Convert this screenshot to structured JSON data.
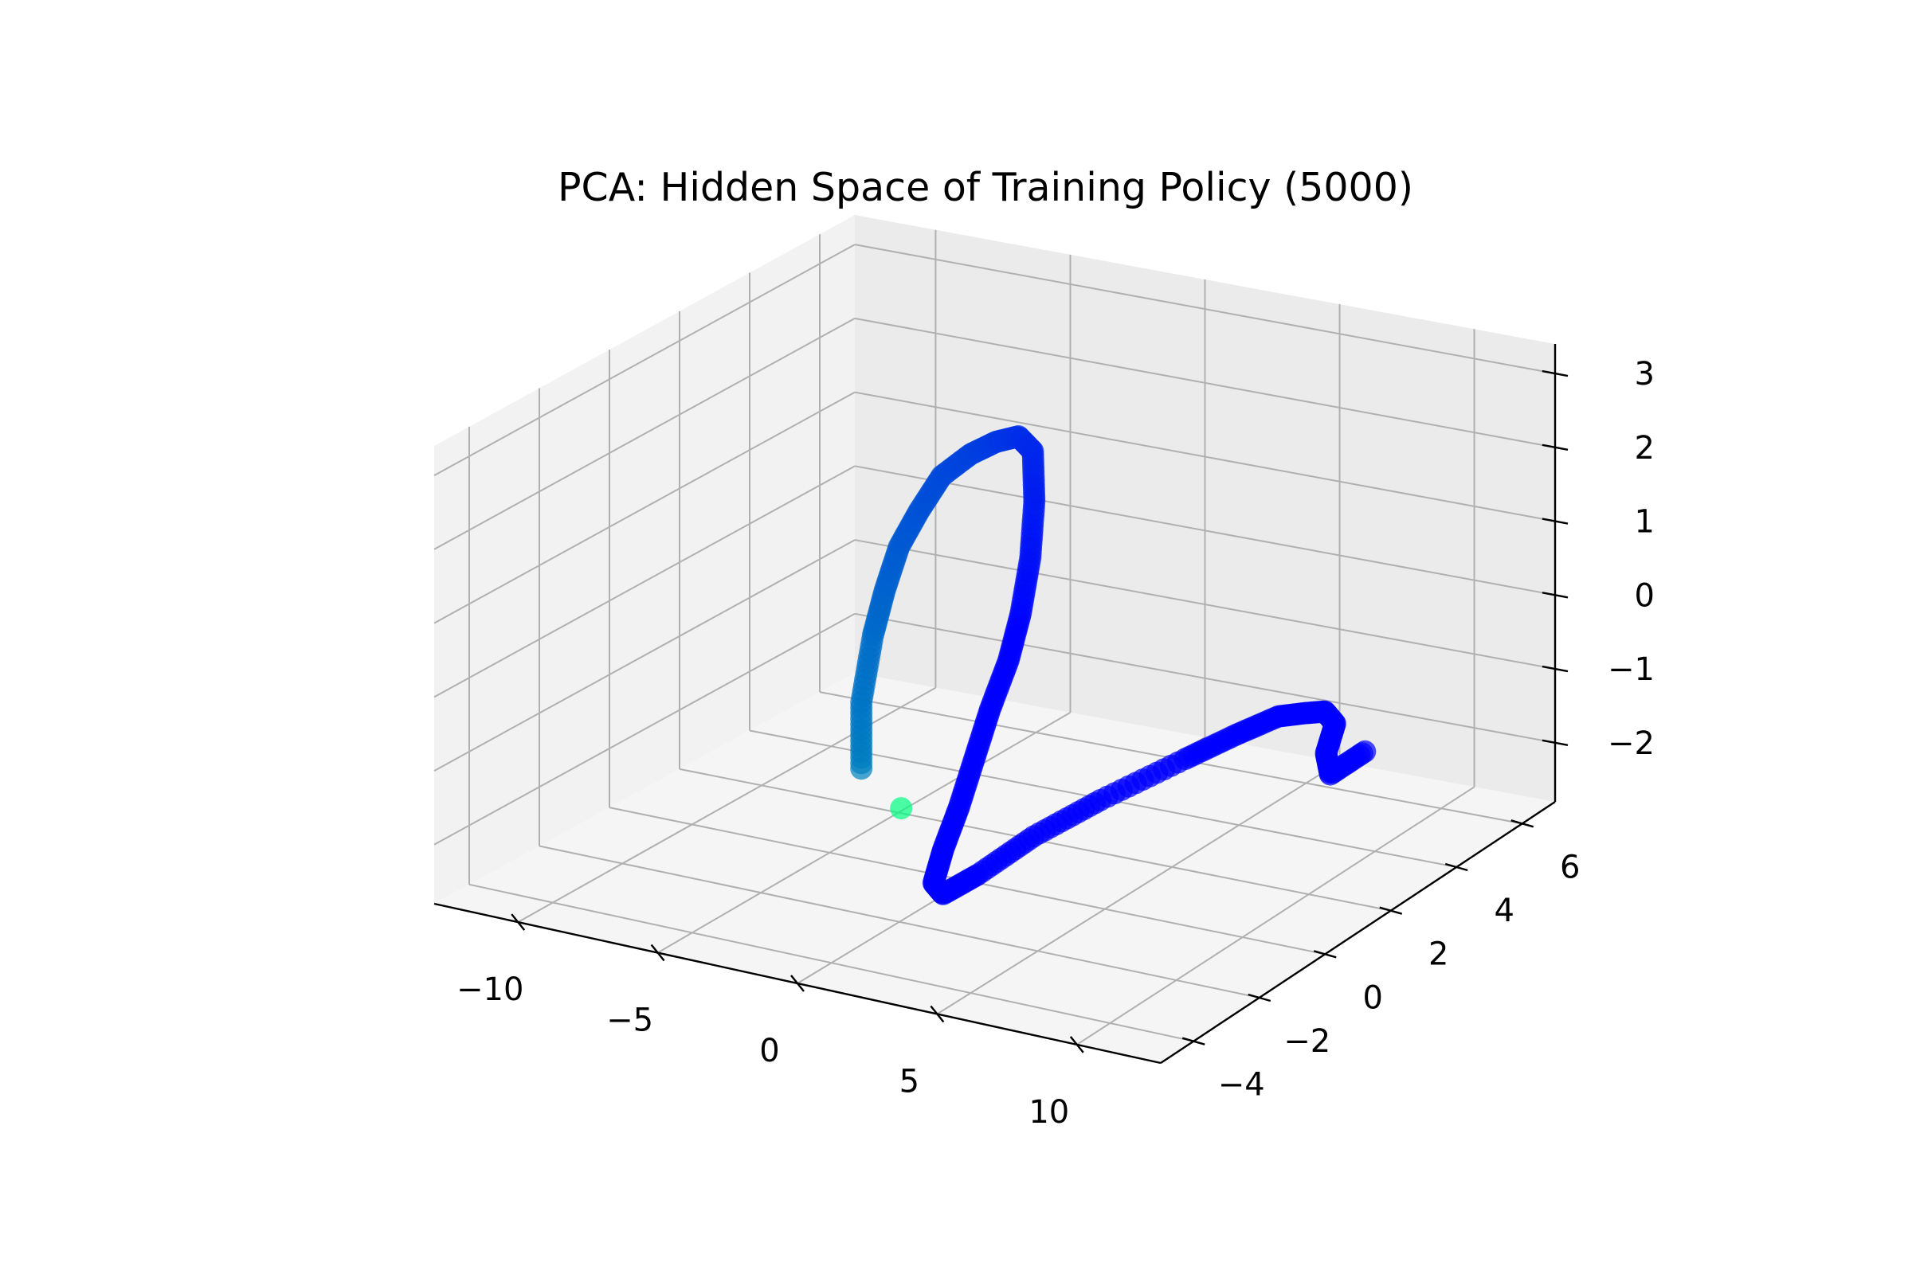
{
  "chart_data": {
    "type": "scatter",
    "projection": "3d",
    "title": "PCA: Hidden Space of Training Policy (5000)",
    "xlabel": "",
    "ylabel": "",
    "zlabel": "",
    "xlim": [
      -13,
      13
    ],
    "ylim": [
      -5,
      7
    ],
    "zlim": [
      -2.8,
      3.4
    ],
    "x_ticks": [
      -10,
      -5,
      0,
      5,
      10
    ],
    "y_ticks": [
      -4,
      -2,
      0,
      2,
      4,
      6
    ],
    "z_ticks": [
      -2,
      -1,
      0,
      1,
      2,
      3
    ],
    "x_tick_labels": [
      "−10",
      "−5",
      "0",
      "5",
      "10"
    ],
    "y_tick_labels": [
      "−4",
      "−2",
      "0",
      "2",
      "4",
      "6"
    ],
    "z_tick_labels": [
      "−2",
      "−1",
      "0",
      "1",
      "2",
      "3"
    ],
    "grid": true,
    "colormap": "winter",
    "marker_alpha": 0.7,
    "point_colors": {
      "start": "#00ff80",
      "early": "#0080bf",
      "late": "#0000ff"
    },
    "x": [
      -2.4,
      -3.6,
      -3.6,
      -3.3,
      -3.0,
      -2.6,
      -2.0,
      -1.3,
      -0.5,
      0.3,
      1.0,
      1.4,
      1.7,
      1.8,
      1.7,
      1.5,
      1.2,
      1.0,
      0.8,
      0.6,
      0.5,
      0.6,
      1.0,
      1.8,
      3.0,
      4.5,
      5.5,
      6.2,
      6.8,
      7.3,
      7.8,
      8.2,
      8.6,
      8.9
    ],
    "y": [
      0.0,
      -0.2,
      -0.2,
      -0.1,
      0.0,
      0.1,
      0.2,
      0.3,
      0.5,
      0.6,
      0.7,
      0.8,
      0.6,
      0.4,
      0.2,
      0.0,
      -0.3,
      -0.6,
      -0.9,
      -1.2,
      -1.4,
      -1.2,
      -0.5,
      0.5,
      1.5,
      2.8,
      3.5,
      4.2,
      4.5,
      4.7,
      4.6,
      4.0,
      3.8,
      4.6
    ],
    "z": [
      -2.0,
      -1.5,
      -0.6,
      0.3,
      0.9,
      1.5,
      2.0,
      2.5,
      2.8,
      3.0,
      3.1,
      2.9,
      2.3,
      1.6,
      0.9,
      0.3,
      -0.3,
      -0.9,
      -1.5,
      -2.0,
      -2.4,
      -2.6,
      -2.5,
      -2.2,
      -1.9,
      -1.6,
      -1.4,
      -1.3,
      -1.3,
      -1.3,
      -1.4,
      -1.6,
      -1.8,
      -1.7
    ],
    "t": [
      0.0,
      0.05,
      0.09,
      0.12,
      0.15,
      0.18,
      0.21,
      0.24,
      0.27,
      0.3,
      0.33,
      0.36,
      0.4,
      0.44,
      0.48,
      0.52,
      0.56,
      0.6,
      0.64,
      0.68,
      0.72,
      0.75,
      0.78,
      0.81,
      0.84,
      0.87,
      0.89,
      0.91,
      0.93,
      0.95,
      0.97,
      0.98,
      0.99,
      1.0
    ]
  }
}
